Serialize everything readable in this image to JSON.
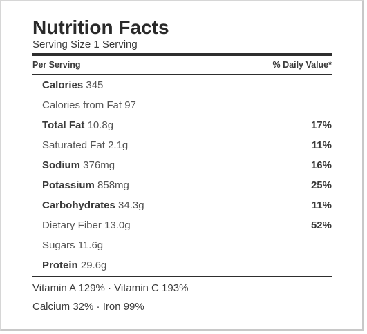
{
  "title": "Nutrition Facts",
  "serving": "Serving Size 1 Serving",
  "header": {
    "left": "Per Serving",
    "right": "% Daily Value*"
  },
  "rows": [
    {
      "label": "Calories",
      "value": "345",
      "bold": true,
      "pct": ""
    },
    {
      "label": "Calories from Fat",
      "value": "97",
      "bold": false,
      "pct": ""
    },
    {
      "label": "Total Fat",
      "value": "10.8g",
      "bold": true,
      "pct": "17%"
    },
    {
      "label": "Saturated Fat",
      "value": "2.1g",
      "bold": false,
      "pct": "11%"
    },
    {
      "label": "Sodium",
      "value": "376mg",
      "bold": true,
      "pct": "16%"
    },
    {
      "label": "Potassium",
      "value": "858mg",
      "bold": true,
      "pct": "25%"
    },
    {
      "label": "Carbohydrates",
      "value": "34.3g",
      "bold": true,
      "pct": "11%"
    },
    {
      "label": "Dietary Fiber",
      "value": "13.0g",
      "bold": false,
      "pct": "52%"
    },
    {
      "label": "Sugars",
      "value": "11.6g",
      "bold": false,
      "pct": ""
    },
    {
      "label": "Protein",
      "value": "29.6g",
      "bold": true,
      "pct": ""
    }
  ],
  "vitamins": {
    "line1": "Vitamin A 129% · Vitamin C 193%",
    "line2": "Calcium 32% · Iron 99%"
  }
}
